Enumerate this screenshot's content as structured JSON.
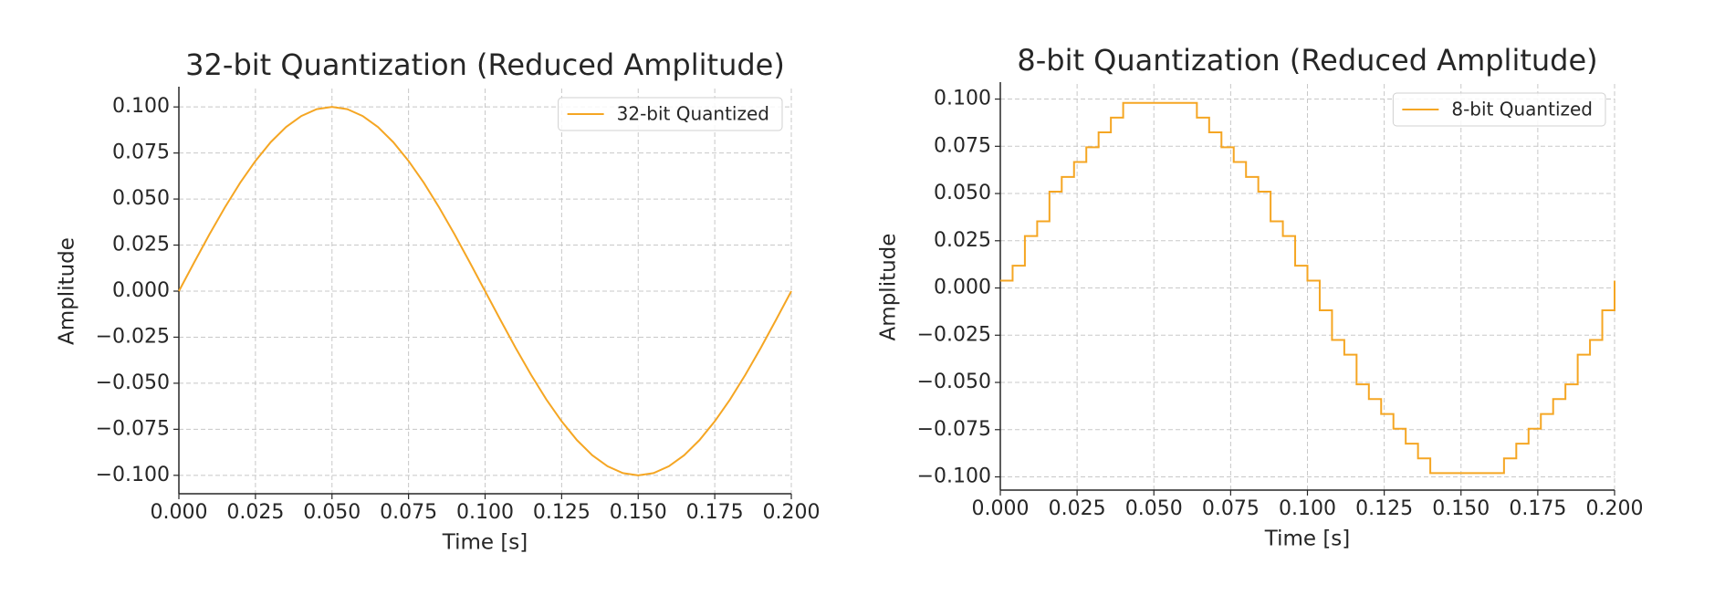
{
  "chart_data": [
    {
      "type": "line",
      "title": "32-bit Quantization (Reduced Amplitude)",
      "xlabel": "Time [s]",
      "ylabel": "Amplitude",
      "x": [
        0,
        0.005,
        0.01,
        0.015,
        0.02,
        0.025,
        0.03,
        0.035,
        0.04,
        0.045,
        0.05,
        0.055,
        0.06,
        0.065,
        0.07,
        0.075,
        0.08,
        0.085,
        0.09,
        0.095,
        0.1,
        0.105,
        0.11,
        0.115,
        0.12,
        0.125,
        0.13,
        0.135,
        0.14,
        0.145,
        0.15,
        0.155,
        0.16,
        0.165,
        0.17,
        0.175,
        0.18,
        0.185,
        0.19,
        0.195,
        0.2
      ],
      "series": [
        {
          "name": "32-bit Quantized",
          "color": "#f5a623",
          "values": [
            0,
            0.0156,
            0.0309,
            0.0454,
            0.0588,
            0.0707,
            0.0809,
            0.0891,
            0.0951,
            0.0988,
            0.1,
            0.0988,
            0.0951,
            0.0891,
            0.0809,
            0.0707,
            0.0588,
            0.0454,
            0.0309,
            0.0156,
            0,
            -0.0156,
            -0.0309,
            -0.0454,
            -0.0588,
            -0.0707,
            -0.0809,
            -0.0891,
            -0.0951,
            -0.0988,
            -0.1,
            -0.0988,
            -0.0951,
            -0.0891,
            -0.0809,
            -0.0707,
            -0.0588,
            -0.0454,
            -0.0309,
            -0.0156,
            0
          ]
        }
      ],
      "drawstyle": "default",
      "xlim": [
        0,
        0.2
      ],
      "ylim": [
        -0.11,
        0.11
      ],
      "xticks": [
        {
          "value": 0,
          "label": "0.000"
        },
        {
          "value": 0.025,
          "label": "0.025"
        },
        {
          "value": 0.05,
          "label": "0.050"
        },
        {
          "value": 0.075,
          "label": "0.075"
        },
        {
          "value": 0.1,
          "label": "0.100"
        },
        {
          "value": 0.125,
          "label": "0.125"
        },
        {
          "value": 0.15,
          "label": "0.150"
        },
        {
          "value": 0.175,
          "label": "0.175"
        },
        {
          "value": 0.2,
          "label": "0.200"
        }
      ],
      "yticks": [
        {
          "value": 0.1,
          "label": "0.100"
        },
        {
          "value": 0.075,
          "label": "0.075"
        },
        {
          "value": 0.05,
          "label": "0.050"
        },
        {
          "value": 0.025,
          "label": "0.025"
        },
        {
          "value": 0,
          "label": "0.000"
        },
        {
          "value": -0.025,
          "label": "−0.025"
        },
        {
          "value": -0.05,
          "label": "−0.050"
        },
        {
          "value": -0.075,
          "label": "−0.075"
        },
        {
          "value": -0.1,
          "label": "−0.100"
        }
      ],
      "grid": true,
      "legend": "upper right"
    },
    {
      "type": "line",
      "title": "8-bit Quantization (Reduced Amplitude)",
      "xlabel": "Time [s]",
      "ylabel": "Amplitude",
      "x": [
        0,
        0.004,
        0.008,
        0.012,
        0.016,
        0.02,
        0.024,
        0.028,
        0.032,
        0.036,
        0.04,
        0.044,
        0.048,
        0.052,
        0.056,
        0.06,
        0.064,
        0.068,
        0.072,
        0.076,
        0.08,
        0.084,
        0.088,
        0.092,
        0.096,
        0.1,
        0.104,
        0.108,
        0.112,
        0.116,
        0.12,
        0.124,
        0.128,
        0.132,
        0.136,
        0.14,
        0.144,
        0.148,
        0.152,
        0.156,
        0.16,
        0.164,
        0.168,
        0.172,
        0.176,
        0.18,
        0.184,
        0.188,
        0.192,
        0.196,
        0.2
      ],
      "series": [
        {
          "name": "8-bit Quantized",
          "color": "#f5a623",
          "values": [
            0.0039,
            0.0118,
            0.0275,
            0.0353,
            0.051,
            0.0588,
            0.0667,
            0.0745,
            0.0824,
            0.0902,
            0.098,
            0.098,
            0.098,
            0.098,
            0.098,
            0.098,
            0.0902,
            0.0824,
            0.0745,
            0.0667,
            0.0588,
            0.051,
            0.0353,
            0.0275,
            0.0118,
            0.0039,
            -0.0118,
            -0.0275,
            -0.0353,
            -0.051,
            -0.0588,
            -0.0667,
            -0.0745,
            -0.0824,
            -0.0902,
            -0.098,
            -0.098,
            -0.098,
            -0.098,
            -0.098,
            -0.098,
            -0.0902,
            -0.0824,
            -0.0745,
            -0.0667,
            -0.0588,
            -0.051,
            -0.0353,
            -0.0275,
            -0.0118,
            0.0039
          ]
        }
      ],
      "drawstyle": "steps-post",
      "xlim": [
        0,
        0.2
      ],
      "ylim": [
        -0.107,
        0.108
      ],
      "xticks": [
        {
          "value": 0,
          "label": "0.000"
        },
        {
          "value": 0.025,
          "label": "0.025"
        },
        {
          "value": 0.05,
          "label": "0.050"
        },
        {
          "value": 0.075,
          "label": "0.075"
        },
        {
          "value": 0.1,
          "label": "0.100"
        },
        {
          "value": 0.125,
          "label": "0.125"
        },
        {
          "value": 0.15,
          "label": "0.150"
        },
        {
          "value": 0.175,
          "label": "0.175"
        },
        {
          "value": 0.2,
          "label": "0.200"
        }
      ],
      "yticks": [
        {
          "value": 0.1,
          "label": "0.100"
        },
        {
          "value": 0.075,
          "label": "0.075"
        },
        {
          "value": 0.05,
          "label": "0.050"
        },
        {
          "value": 0.025,
          "label": "0.025"
        },
        {
          "value": 0,
          "label": "0.000"
        },
        {
          "value": -0.025,
          "label": "−0.025"
        },
        {
          "value": -0.05,
          "label": "−0.050"
        },
        {
          "value": -0.075,
          "label": "−0.075"
        },
        {
          "value": -0.1,
          "label": "−0.100"
        }
      ],
      "grid": true,
      "legend": "upper right"
    }
  ]
}
